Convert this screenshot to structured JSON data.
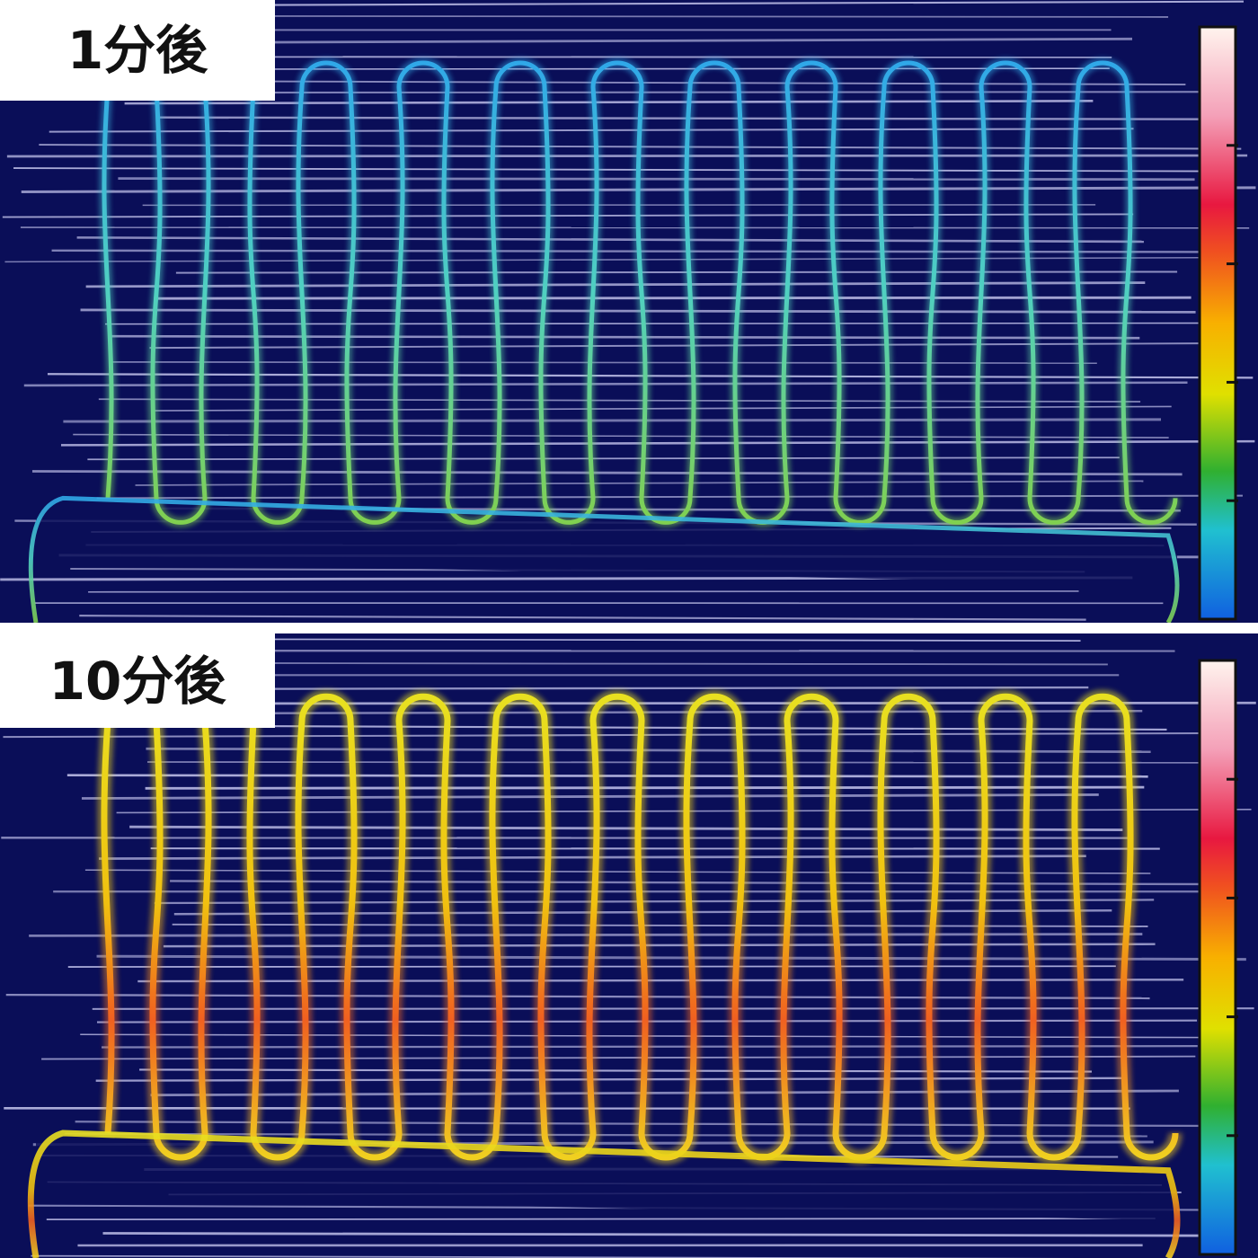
{
  "panels": [
    {
      "label": "1分後"
    },
    {
      "label": "10分後"
    }
  ]
}
